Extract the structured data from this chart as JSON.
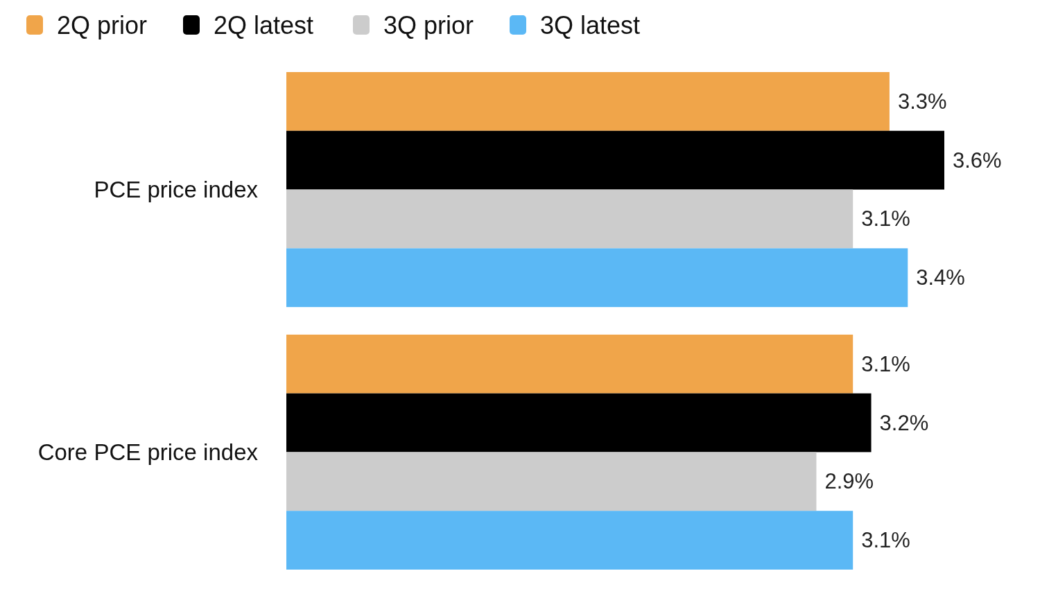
{
  "chart_data": {
    "type": "bar",
    "orientation": "horizontal",
    "categories": [
      "PCE price index",
      "Core PCE price index"
    ],
    "series": [
      {
        "name": "2Q prior",
        "color": "#f0a54a",
        "values": [
          3.3,
          3.1
        ],
        "value_labels": [
          "3.3%",
          "3.1%"
        ]
      },
      {
        "name": "2Q latest",
        "color": "#000000",
        "values": [
          3.6,
          3.2
        ],
        "value_labels": [
          "3.6%",
          "3.2%"
        ]
      },
      {
        "name": "3Q prior",
        "color": "#cccccc",
        "values": [
          3.1,
          2.9
        ],
        "value_labels": [
          "3.1%",
          "2.9%"
        ]
      },
      {
        "name": "3Q latest",
        "color": "#5bb8f5",
        "values": [
          3.4,
          3.1
        ],
        "value_labels": [
          "3.4%",
          "3.1%"
        ]
      }
    ],
    "legend": "top left"
  }
}
